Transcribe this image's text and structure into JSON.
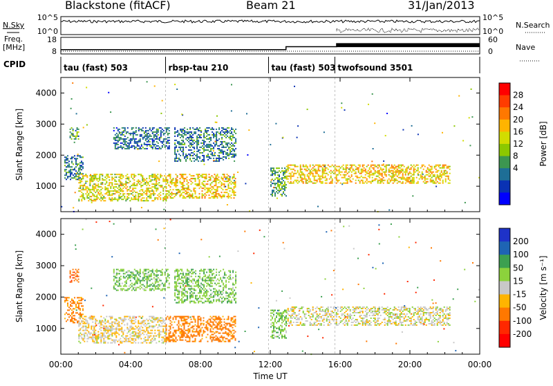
{
  "header": {
    "station": "Blackstone (fitACF)",
    "beam": "Beam 21",
    "date": "31/Jan/2013"
  },
  "side_labels": {
    "nsky": "N.Sky",
    "nsearch": "N.Search",
    "freq_top": "Freq.",
    "freq_unit": "[MHz]",
    "nave": "Nave",
    "cpid": "CPID"
  },
  "noise_panel": {
    "left_ticks": [
      "10^5",
      "10^0"
    ],
    "right_ticks": [
      "10^5",
      "10^0"
    ]
  },
  "freq_panel": {
    "left_ticks": [
      "18",
      "8"
    ],
    "right_ticks": [
      "60",
      "0"
    ],
    "freq_mhz_steps": [
      {
        "t": 0.0,
        "v": 10.6
      },
      {
        "t": 12.9,
        "v": 12.4
      },
      {
        "t": 15.8,
        "v": 14.2
      },
      {
        "t": 24.0,
        "v": 14.2
      }
    ]
  },
  "cpid_segments": [
    {
      "start_h": 0.0,
      "label": "tau (fast) 503"
    },
    {
      "start_h": 6.0,
      "label": "rbsp-tau 210"
    },
    {
      "start_h": 11.9,
      "label": "tau (fast) 503"
    },
    {
      "start_h": 15.7,
      "label": "twofsound 3501"
    }
  ],
  "x_axis": {
    "label": "Time UT",
    "range_h": [
      0,
      24
    ],
    "ticks": [
      "00:00",
      "04:00",
      "08:00",
      "12:00",
      "16:00",
      "20:00",
      "00:00"
    ]
  },
  "range_axis": {
    "label": "Slant Range [km]",
    "ticks": [
      "4000",
      "3000",
      "2000",
      "1000"
    ],
    "range_km": [
      180,
      4500
    ]
  },
  "power_colorbar": {
    "label": "Power [dB]",
    "ticks": [
      "28",
      "24",
      "20",
      "16",
      "12",
      "8",
      "4"
    ],
    "colors": [
      "#ff0000",
      "#ff3c00",
      "#ff7800",
      "#ffb400",
      "#d2dc00",
      "#8cc800",
      "#3c9650",
      "#1e6e96",
      "#0a32b4",
      "#0000ff"
    ]
  },
  "velocity_colorbar": {
    "label": "Velocity [m s⁻¹]",
    "ticks": [
      "200",
      "100",
      "50",
      "15",
      "-15",
      "-50",
      "-100",
      "-200"
    ],
    "colors": [
      "#1e32c8",
      "#1e64b4",
      "#3ca050",
      "#8cd23c",
      "#c8c8c8",
      "#ffb400",
      "#ff7800",
      "#ff2800",
      "#ff0000"
    ]
  },
  "chart_data": {
    "type": "heatmap",
    "x_units": "hours UT",
    "y_units": "slant range km",
    "scatter_regions": [
      {
        "t0": 0.2,
        "t1": 1.3,
        "r0": 1200,
        "r1": 2000,
        "power_db": 10,
        "velocity_ms": -60
      },
      {
        "t0": 0.5,
        "t1": 1.0,
        "r0": 2500,
        "r1": 2900,
        "power_db": 12,
        "velocity_ms": -80
      },
      {
        "t0": 1.0,
        "t1": 6.0,
        "r0": 550,
        "r1": 1400,
        "power_db": 18,
        "velocity_ms": -10
      },
      {
        "t0": 6.0,
        "t1": 10.0,
        "r0": 600,
        "r1": 1400,
        "power_db": 20,
        "velocity_ms": -70
      },
      {
        "t0": 3.0,
        "t1": 6.2,
        "r0": 2200,
        "r1": 2900,
        "power_db": 9,
        "velocity_ms": 40
      },
      {
        "t0": 6.5,
        "t1": 10.0,
        "r0": 1800,
        "r1": 2900,
        "power_db": 10,
        "velocity_ms": 40
      },
      {
        "t0": 12.0,
        "t1": 12.9,
        "r0": 700,
        "r1": 1600,
        "power_db": 12,
        "velocity_ms": 40
      },
      {
        "t0": 12.9,
        "t1": 22.3,
        "r0": 1100,
        "r1": 1700,
        "power_db": 20,
        "velocity_ms": 0
      }
    ]
  }
}
